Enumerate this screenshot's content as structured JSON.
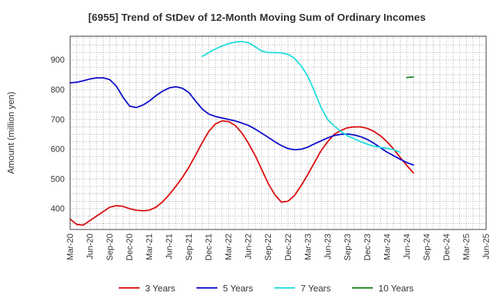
{
  "chart_data": {
    "type": "line",
    "title": "[6955]  Trend of StDev of 12-Month Moving Sum of Ordinary Incomes",
    "xlabel": "",
    "ylabel": "Amount (million yen)",
    "ylim": [
      330,
      980
    ],
    "yticks": [
      400,
      500,
      600,
      700,
      800,
      900
    ],
    "xticks": [
      "Mar-20",
      "Jun-20",
      "Sep-20",
      "Dec-20",
      "Mar-21",
      "Jun-21",
      "Sep-21",
      "Dec-21",
      "Mar-22",
      "Jun-22",
      "Sep-22",
      "Dec-22",
      "Mar-23",
      "Jun-23",
      "Sep-23",
      "Dec-23",
      "Mar-24",
      "Jun-24",
      "Sep-24",
      "Dec-24",
      "Mar-25",
      "Jun-25"
    ],
    "grid": true,
    "legend_position": "bottom",
    "series": [
      {
        "name": "3 Years",
        "color": "#dd1111",
        "start_index": 0,
        "values": [
          365,
          347,
          345,
          360,
          375,
          390,
          405,
          410,
          408,
          400,
          395,
          393,
          395,
          405,
          423,
          447,
          475,
          505,
          540,
          580,
          622,
          660,
          685,
          695,
          693,
          680,
          655,
          620,
          580,
          532,
          485,
          447,
          422,
          425,
          445,
          478,
          515,
          555,
          595,
          625,
          650,
          663,
          672,
          675,
          675,
          670,
          660,
          645,
          625,
          600,
          572,
          545,
          520
        ]
      },
      {
        "name": "5 Years",
        "color": "#1111cc",
        "start_index": 0,
        "values": [
          823,
          825,
          830,
          836,
          840,
          840,
          834,
          812,
          775,
          745,
          740,
          748,
          762,
          780,
          795,
          806,
          810,
          805,
          790,
          762,
          735,
          718,
          710,
          705,
          700,
          695,
          688,
          680,
          668,
          654,
          640,
          625,
          612,
          602,
          598,
          600,
          607,
          618,
          628,
          638,
          646,
          650,
          651,
          648,
          642,
          633,
          620,
          605,
          590,
          578,
          566,
          555,
          547
        ]
      },
      {
        "name": "7 Years",
        "color": "#22dddd",
        "start_index": 20,
        "values": [
          912,
          925,
          937,
          947,
          955,
          960,
          962,
          958,
          945,
          930,
          925,
          925,
          924,
          919,
          905,
          880,
          845,
          795,
          740,
          700,
          678,
          660,
          645,
          635,
          625,
          617,
          610,
          606,
          603,
          598,
          590
        ]
      },
      {
        "name": "10 Years",
        "color": "#228822",
        "start_index": 51,
        "values": [
          841,
          843
        ]
      }
    ]
  }
}
